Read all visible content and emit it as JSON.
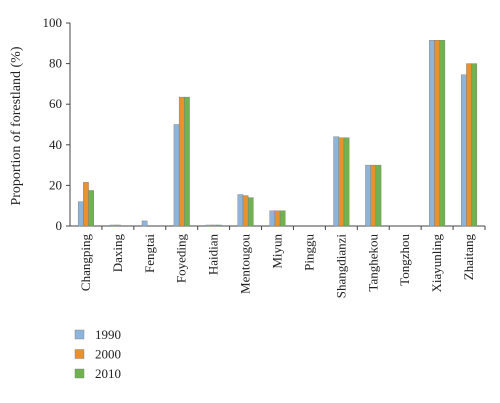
{
  "chart_data": {
    "type": "bar",
    "title": "",
    "xlabel": "",
    "ylabel": "Proportion of forestland (%)",
    "ylim": [
      0,
      100
    ],
    "yticks": [
      0,
      20,
      40,
      60,
      80,
      100
    ],
    "grid": false,
    "legend_position": "bottom-left",
    "categories": [
      "Changping",
      "Daxing",
      "Fengtai",
      "Foyeding",
      "Haidian",
      "Mentougou",
      "Miyun",
      "Pinggu",
      "Shangdianzi",
      "Tanghekou",
      "Tongzhou",
      "Xiayunling",
      "Zhaitang"
    ],
    "series": [
      {
        "name": "1990",
        "color": "#8fb4dc",
        "values": [
          12,
          0.5,
          2.5,
          50,
          0.5,
          15.5,
          7.5,
          0,
          44,
          30,
          0,
          91.5,
          74.5
        ]
      },
      {
        "name": "2000",
        "color": "#e8912d",
        "values": [
          21.5,
          0.5,
          0,
          63.5,
          0.5,
          15,
          7.5,
          0,
          43.5,
          30,
          0,
          91.5,
          80
        ]
      },
      {
        "name": "2010",
        "color": "#6fb24f",
        "values": [
          17.5,
          0,
          0,
          63.5,
          0.5,
          14,
          7.5,
          0,
          43.5,
          30,
          0,
          91.5,
          80
        ]
      }
    ]
  }
}
